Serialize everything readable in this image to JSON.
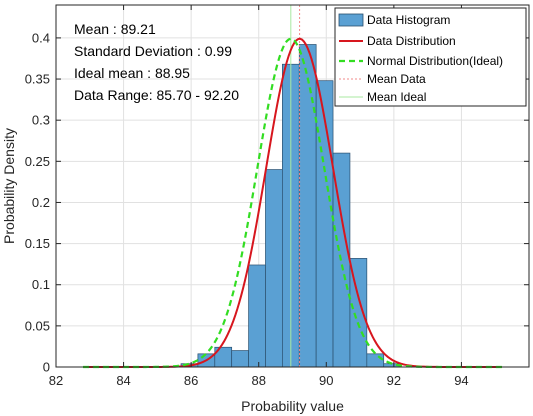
{
  "chart_data": {
    "type": "bar",
    "xlabel": "Probability value",
    "ylabel": "Probability Density",
    "xlim": [
      82,
      96
    ],
    "ylim": [
      0,
      0.44
    ],
    "xticks": [
      "82",
      "84",
      "86",
      "88",
      "90",
      "92",
      "94"
    ],
    "yticks": [
      "0",
      "0.05",
      "0.1",
      "0.15",
      "0.2",
      "0.25",
      "0.3",
      "0.35",
      "0.4"
    ],
    "grid": true,
    "legend_position": "top-right",
    "stats": [
      "Mean : 89.21",
      "Standard Deviation : 0.99",
      "Ideal mean : 88.95",
      "Data Range: 85.70 - 92.20"
    ],
    "histogram": {
      "name": "Data Histogram",
      "color": "#5aa0d3",
      "edge_color": "#2a4f6e",
      "bin_width": 0.5,
      "bin_starts": [
        85.7,
        86.2,
        86.7,
        87.2,
        87.7,
        88.2,
        88.7,
        89.2,
        89.7,
        90.2,
        90.7,
        91.2,
        91.7
      ],
      "densities": [
        0.004,
        0.016,
        0.024,
        0.02,
        0.124,
        0.24,
        0.368,
        0.392,
        0.348,
        0.26,
        0.132,
        0.016,
        0.004
      ]
    },
    "curves": [
      {
        "name": "Data Distribution",
        "kind": "normal",
        "mean": 89.21,
        "std": 0.99,
        "scale": 0.99,
        "color": "#d7161e",
        "dash": "none",
        "width": 2,
        "x_from": 82.8,
        "x_to": 95.2
      },
      {
        "name": "Normal Distribution(Ideal)",
        "kind": "normal",
        "mean": 88.95,
        "std": 0.99,
        "scale": 0.99,
        "color": "#33dd22",
        "dash": "6,4",
        "width": 2.2,
        "x_from": 82.8,
        "x_to": 95.2
      }
    ],
    "vlines": [
      {
        "name": "Mean Data",
        "x": 89.21,
        "color": "#f28a8a",
        "dash": "2,2"
      },
      {
        "name": "Mean Ideal",
        "x": 88.95,
        "color": "#a8eaa0",
        "dash": "none"
      }
    ]
  }
}
